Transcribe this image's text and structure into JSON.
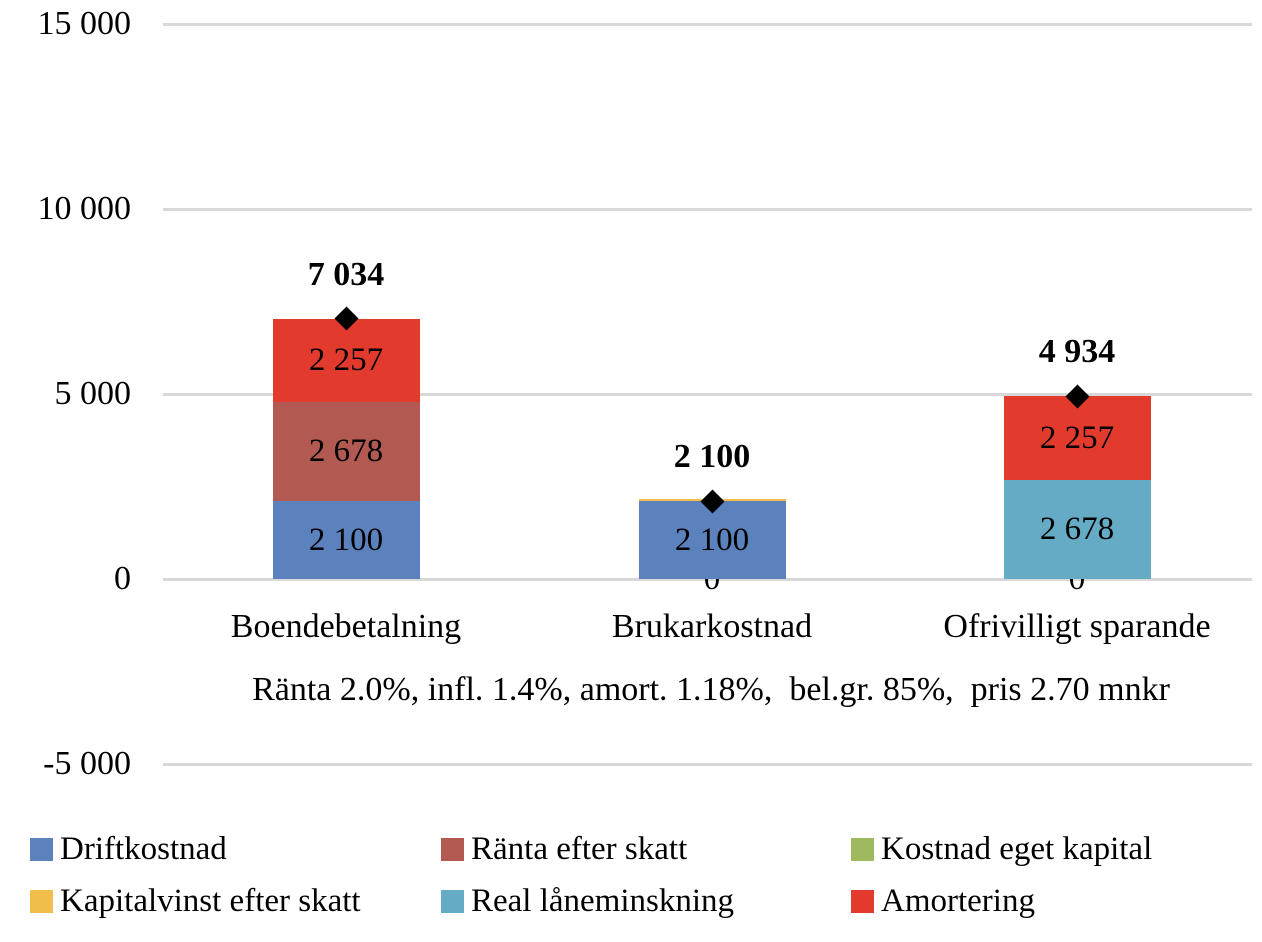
{
  "chart_data": {
    "type": "bar",
    "subtype": "stacked-column-with-total-markers",
    "title": "",
    "annotation": "Ränta 2.0%, infl. 1.4%, amort. 1.18%,  bel.gr. 85%,  pris 2.70 mnkr",
    "grid": true,
    "y_axis": {
      "min": -5000,
      "max": 15000,
      "ticks": [
        {
          "value": 15000,
          "label": "15 000"
        },
        {
          "value": 10000,
          "label": "10 000"
        },
        {
          "value": 5000,
          "label": "5 000"
        },
        {
          "value": 0,
          "label": "0"
        },
        {
          "value": -5000,
          "label": "-5 000"
        }
      ]
    },
    "categories": [
      "Boendebetalning",
      "Brukarkostnad",
      "Ofrivilligt sparande"
    ],
    "series": [
      {
        "name": "Driftkostnad",
        "color": "#5B82BC"
      },
      {
        "name": "Ränta efter skatt",
        "color": "#B25A52"
      },
      {
        "name": "Kostnad eget kapital",
        "color": "#9FB95F"
      },
      {
        "name": "Kapitalvinst efter skatt",
        "color": "#F0BE4A"
      },
      {
        "name": "Real låneminskning",
        "color": "#65ABC6"
      },
      {
        "name": "Amortering",
        "color": "#E23B2E"
      }
    ],
    "bars": [
      {
        "category": "Boendebetalning",
        "segments": [
          {
            "series": "Driftkostnad",
            "value": 2100,
            "label": "2 100"
          },
          {
            "series": "Ränta efter skatt",
            "value": 2678,
            "label": "2 678"
          },
          {
            "series": "Amortering",
            "value": 2257,
            "label": "2 257"
          }
        ]
      },
      {
        "category": "Brukarkostnad",
        "segments": [
          {
            "series": "Kostnad eget kapital",
            "value": 0,
            "label": "0",
            "sliver": true
          },
          {
            "series": "Driftkostnad",
            "value": 2100,
            "label": "2 100"
          },
          {
            "series": "Kapitalvinst efter skatt",
            "value": 0,
            "sliver": true
          }
        ]
      },
      {
        "category": "Ofrivilligt sparande",
        "segments": [
          {
            "series": "Kostnad eget kapital",
            "value": 0,
            "label": "0"
          },
          {
            "series": "Real låneminskning",
            "value": 2678,
            "label": "2 678"
          },
          {
            "series": "Amortering",
            "value": 2257,
            "label": "2 257"
          }
        ]
      }
    ],
    "totals": [
      {
        "value": 7034,
        "label": "7 034"
      },
      {
        "value": 2100,
        "label": "2 100"
      },
      {
        "value": 4934,
        "label": "4 934"
      }
    ],
    "total_marker": {
      "shape": "diamond",
      "color": "#000000"
    },
    "gridline_color": "#D8D8D8",
    "legend": {
      "position": "bottom",
      "rows": [
        [
          "Driftkostnad",
          "Ränta efter skatt",
          "Kostnad eget kapital"
        ],
        [
          "Kapitalvinst efter skatt",
          "Real låneminskning",
          "Amortering"
        ]
      ]
    }
  }
}
